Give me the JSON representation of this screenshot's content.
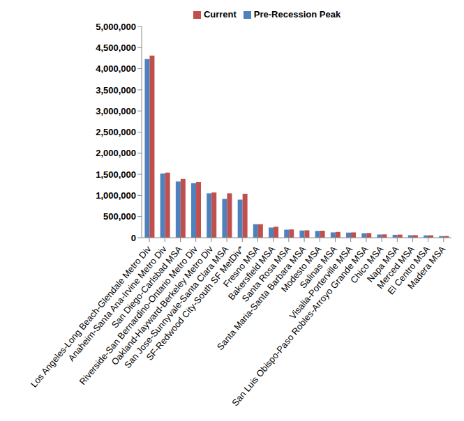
{
  "chart_data": {
    "type": "bar",
    "categories": [
      "Los Angeles-Long Beach-Glendale Metro Div",
      "Anaheim-Santa Ana-Irvine Metro Div",
      "San Diego-Carlsbad MSA",
      "Riverside-San Bernardino-Ontario Metro Div",
      "Oakland-Hayward-Berkeley Metro Div",
      "San Jose-Sunnyvale-Santa Clara MSA",
      "SF-Redwood City-South SF MetDiv*",
      "Fresno MSA",
      "Bakersfield MSA",
      "Santa Rosa MSA",
      "Santa Maria-Santa Barbara MSA",
      "Modesto MSA",
      "Salinas MSA",
      "Visalia-Porterville MSA",
      "San Luis Obispo-Paso Robles-Arroyo Grande MSA",
      "Chico MSA",
      "Napa MSA",
      "Merced MSA",
      "El Centro MSA",
      "Madera MSA"
    ],
    "series": [
      {
        "name": "Pre-Recession Peak",
        "color": "#4f81bd",
        "values": [
          4230000,
          1520000,
          1330000,
          1290000,
          1050000,
          920000,
          900000,
          320000,
          240000,
          190000,
          170000,
          160000,
          125000,
          120000,
          105000,
          75000,
          68000,
          58000,
          55000,
          38000
        ]
      },
      {
        "name": "Current",
        "color": "#c0504d",
        "values": [
          4310000,
          1540000,
          1390000,
          1320000,
          1070000,
          1050000,
          1040000,
          320000,
          260000,
          195000,
          175000,
          165000,
          135000,
          125000,
          110000,
          78000,
          73000,
          60000,
          57000,
          40000
        ]
      }
    ],
    "ylim": [
      0,
      5000000
    ],
    "yticks": [
      0,
      {
        "value": 500000,
        "label": "500,000"
      },
      {
        "value": 1000000,
        "label": "1,000,000"
      },
      {
        "value": 1500000,
        "label": "1,500,000"
      },
      {
        "value": 2000000,
        "label": "2,000,000"
      },
      {
        "value": 2500000,
        "label": "2,500,000"
      },
      {
        "value": 3000000,
        "label": "3,000,000"
      },
      {
        "value": 3500000,
        "label": "3,500,000"
      },
      {
        "value": 4000000,
        "label": "4,000,000"
      },
      {
        "value": 4500000,
        "label": "4,500,000"
      },
      {
        "value": 5000000,
        "label": "5,000,000"
      }
    ],
    "grid": false,
    "legend": "top"
  }
}
